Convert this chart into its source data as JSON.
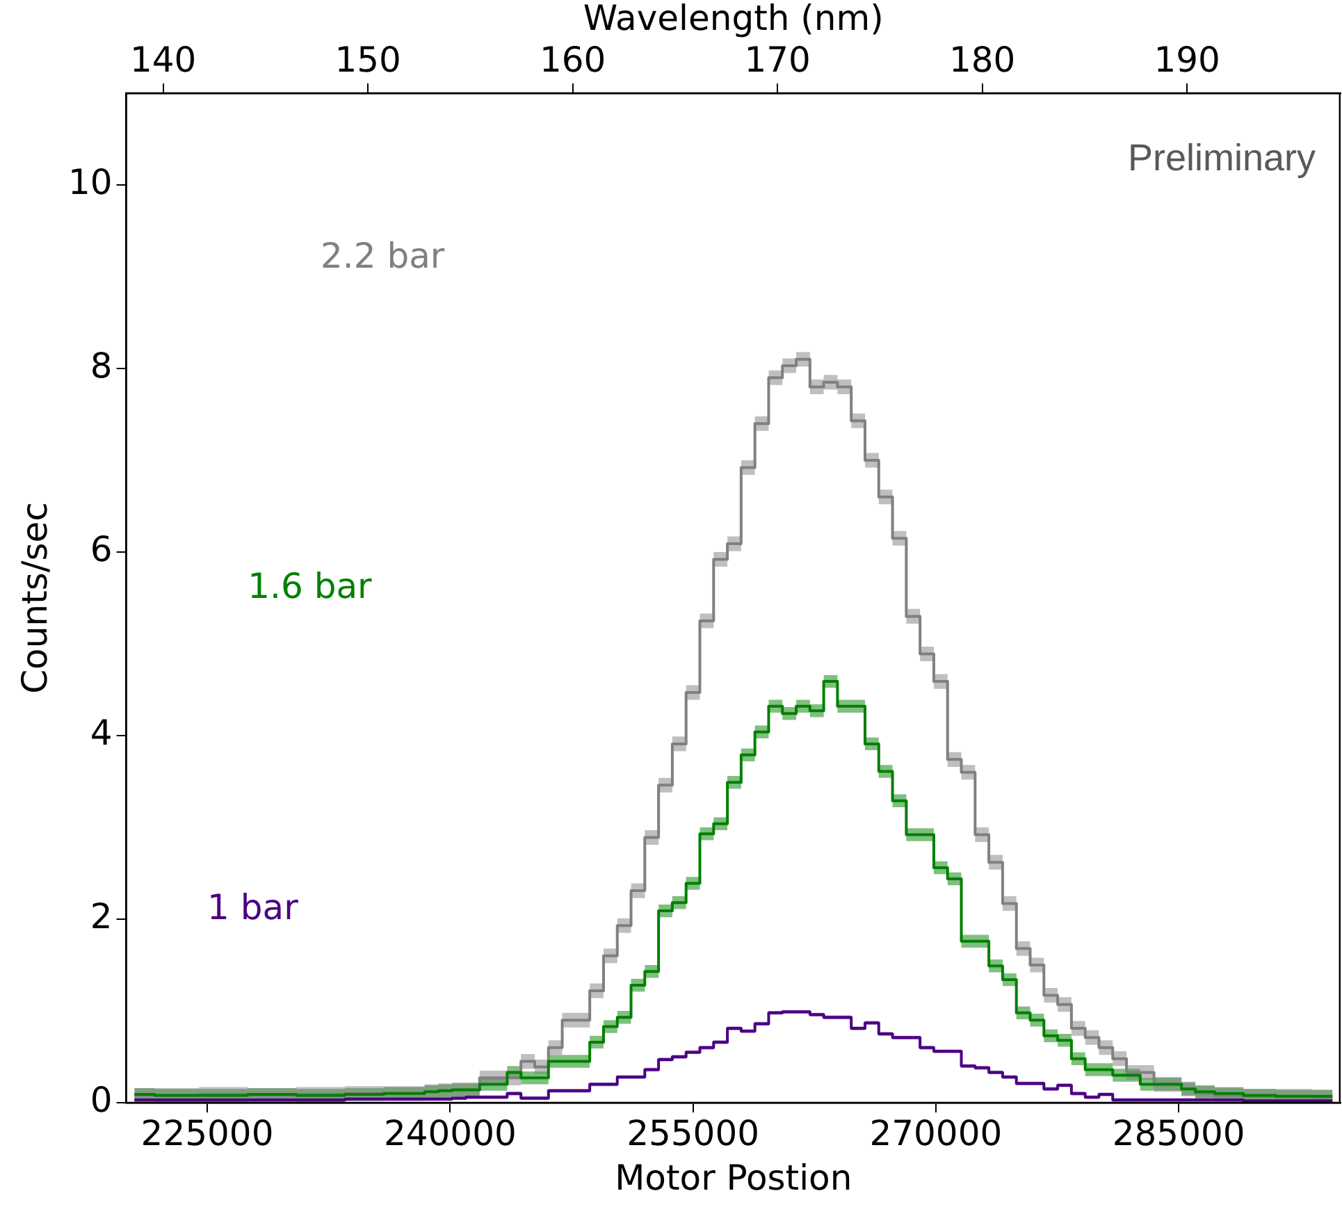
{
  "chart_data": {
    "type": "step",
    "xlabel": "Motor Postion",
    "ylabel": "Counts/sec",
    "x2label": "Wavelength (nm)",
    "xlim": [
      220000,
      295000
    ],
    "xticks": [
      225000,
      240000,
      255000,
      270000,
      285000
    ],
    "x2lim": [
      138.2,
      197.5
    ],
    "x2ticks": [
      140,
      150,
      160,
      170,
      180,
      190
    ],
    "ylim": [
      0,
      11
    ],
    "yticks": [
      0,
      2,
      4,
      6,
      8,
      10
    ],
    "annotations": [
      "Preliminary"
    ],
    "x": [
      220500,
      223000,
      226000,
      229000,
      232000,
      235000,
      236800,
      238000,
      238850,
      239700,
      240550,
      241400,
      242250,
      243100,
      243950,
      244800,
      245650,
      246500,
      247350,
      248200,
      249050,
      249900,
      250750,
      251600,
      252450,
      253300,
      254150,
      255000,
      255850,
      256700,
      257550,
      258400,
      259250,
      260100,
      260950,
      261800,
      262650,
      263500,
      264350,
      265200,
      266050,
      266900,
      267750,
      268600,
      269450,
      270300,
      271150,
      272000,
      272850,
      273700,
      274550,
      275400,
      276250,
      277100,
      277950,
      278800,
      279650,
      280500,
      281350,
      282200,
      283050,
      283900,
      284750,
      285600,
      286450,
      288000,
      290000,
      292000,
      294500
    ],
    "series": [
      {
        "name": "2.2 bar",
        "color": "#808080",
        "values": [
          0.08,
          0.08,
          0.09,
          0.08,
          0.09,
          0.1,
          0.1,
          0.1,
          0.12,
          0.13,
          0.14,
          0.14,
          0.27,
          0.27,
          0.27,
          0.45,
          0.39,
          0.6,
          0.9,
          0.9,
          1.22,
          1.6,
          1.93,
          2.31,
          2.89,
          3.46,
          3.91,
          4.47,
          5.25,
          5.92,
          6.09,
          6.92,
          7.4,
          7.9,
          8.03,
          8.1,
          7.8,
          7.85,
          7.8,
          7.43,
          7.0,
          6.6,
          6.15,
          5.3,
          4.89,
          4.59,
          3.74,
          3.6,
          2.92,
          2.62,
          2.17,
          1.68,
          1.5,
          1.17,
          1.07,
          0.81,
          0.71,
          0.6,
          0.48,
          0.33,
          0.33,
          0.2,
          0.2,
          0.15,
          0.1,
          0.08,
          0.07,
          0.07,
          0.06
        ],
        "lower": [
          0,
          0,
          0.01,
          0,
          0.01,
          0.02,
          0.02,
          0.02,
          0.04,
          0.05,
          0.06,
          0.06,
          0.19,
          0.19,
          0.19,
          0.37,
          0.31,
          0.52,
          0.82,
          0.82,
          1.14,
          1.52,
          1.85,
          2.23,
          2.81,
          3.38,
          3.83,
          4.39,
          5.17,
          5.84,
          6.01,
          6.84,
          7.32,
          7.82,
          7.95,
          8.02,
          7.72,
          7.77,
          7.72,
          7.35,
          6.92,
          6.52,
          6.07,
          5.22,
          4.81,
          4.51,
          3.66,
          3.52,
          2.84,
          2.54,
          2.09,
          1.6,
          1.42,
          1.09,
          0.99,
          0.73,
          0.63,
          0.52,
          0.4,
          0.25,
          0.25,
          0.12,
          0.12,
          0.07,
          0.02,
          0,
          0,
          0,
          0
        ],
        "upper": [
          0.16,
          0.16,
          0.17,
          0.16,
          0.17,
          0.18,
          0.18,
          0.18,
          0.2,
          0.21,
          0.22,
          0.22,
          0.35,
          0.35,
          0.35,
          0.53,
          0.47,
          0.68,
          0.98,
          0.98,
          1.3,
          1.68,
          2.01,
          2.39,
          2.97,
          3.54,
          3.99,
          4.55,
          5.33,
          6.0,
          6.17,
          7.0,
          7.48,
          7.98,
          8.11,
          8.18,
          7.88,
          7.93,
          7.88,
          7.51,
          7.08,
          6.68,
          6.23,
          5.38,
          4.97,
          4.67,
          3.82,
          3.68,
          3.0,
          2.7,
          2.25,
          1.76,
          1.58,
          1.25,
          1.15,
          0.89,
          0.79,
          0.68,
          0.56,
          0.41,
          0.41,
          0.28,
          0.28,
          0.23,
          0.18,
          0.16,
          0.15,
          0.15,
          0.14
        ]
      },
      {
        "name": "1.6 bar",
        "color": "#008000",
        "values": [
          0.09,
          0.08,
          0.08,
          0.09,
          0.08,
          0.09,
          0.1,
          0.1,
          0.12,
          0.13,
          0.14,
          0.14,
          0.2,
          0.2,
          0.33,
          0.27,
          0.27,
          0.45,
          0.45,
          0.45,
          0.66,
          0.83,
          0.93,
          1.28,
          1.43,
          2.09,
          2.18,
          2.39,
          2.93,
          3.04,
          3.49,
          3.79,
          4.04,
          4.32,
          4.24,
          4.32,
          4.27,
          4.59,
          4.32,
          4.32,
          3.91,
          3.61,
          3.29,
          2.92,
          2.92,
          2.56,
          2.44,
          1.76,
          1.76,
          1.49,
          1.34,
          0.98,
          0.9,
          0.73,
          0.68,
          0.48,
          0.36,
          0.36,
          0.3,
          0.3,
          0.2,
          0.2,
          0.2,
          0.15,
          0.12,
          0.1,
          0.08,
          0.07,
          0.07
        ],
        "lower": [
          0.02,
          0.01,
          0.01,
          0.02,
          0.01,
          0.02,
          0.03,
          0.03,
          0.05,
          0.06,
          0.07,
          0.07,
          0.13,
          0.13,
          0.26,
          0.2,
          0.2,
          0.38,
          0.38,
          0.38,
          0.59,
          0.76,
          0.86,
          1.21,
          1.36,
          2.02,
          2.11,
          2.32,
          2.86,
          2.97,
          3.42,
          3.72,
          3.97,
          4.25,
          4.17,
          4.25,
          4.2,
          4.52,
          4.25,
          4.25,
          3.84,
          3.54,
          3.22,
          2.85,
          2.85,
          2.49,
          2.37,
          1.69,
          1.69,
          1.42,
          1.27,
          0.91,
          0.83,
          0.66,
          0.61,
          0.41,
          0.29,
          0.29,
          0.23,
          0.23,
          0.13,
          0.13,
          0.13,
          0.08,
          0.05,
          0.03,
          0.01,
          0,
          0
        ],
        "upper": [
          0.16,
          0.15,
          0.15,
          0.16,
          0.15,
          0.16,
          0.17,
          0.17,
          0.19,
          0.2,
          0.21,
          0.21,
          0.27,
          0.27,
          0.4,
          0.34,
          0.34,
          0.52,
          0.52,
          0.52,
          0.73,
          0.9,
          1.0,
          1.35,
          1.5,
          2.16,
          2.25,
          2.46,
          3.0,
          3.11,
          3.56,
          3.86,
          4.11,
          4.39,
          4.31,
          4.39,
          4.34,
          4.66,
          4.39,
          4.39,
          3.98,
          3.68,
          3.36,
          2.99,
          2.99,
          2.63,
          2.51,
          1.83,
          1.83,
          1.56,
          1.41,
          1.05,
          0.97,
          0.8,
          0.75,
          0.55,
          0.43,
          0.43,
          0.37,
          0.37,
          0.27,
          0.27,
          0.27,
          0.22,
          0.19,
          0.17,
          0.15,
          0.14,
          0.14
        ]
      },
      {
        "name": "1 bar",
        "color": "#4b0082",
        "values": [
          0.03,
          0.03,
          0.03,
          0.03,
          0.03,
          0.04,
          0.04,
          0.04,
          0.04,
          0.04,
          0.05,
          0.06,
          0.06,
          0.06,
          0.1,
          0.05,
          0.05,
          0.13,
          0.13,
          0.13,
          0.2,
          0.2,
          0.28,
          0.28,
          0.36,
          0.47,
          0.5,
          0.55,
          0.6,
          0.66,
          0.81,
          0.78,
          0.86,
          0.98,
          0.99,
          0.99,
          0.96,
          0.93,
          0.93,
          0.81,
          0.87,
          0.75,
          0.71,
          0.71,
          0.6,
          0.56,
          0.56,
          0.4,
          0.38,
          0.33,
          0.28,
          0.21,
          0.21,
          0.15,
          0.19,
          0.1,
          0.06,
          0.09,
          0.03,
          0.03,
          0.03,
          0.03,
          0.03,
          0.03,
          0.03,
          0.03,
          0.02,
          0.02,
          0.02
        ],
        "lower": [
          0.01,
          0.01,
          0.01,
          0.01,
          0.01,
          0.02,
          0.02,
          0.02,
          0.02,
          0.02,
          0.03,
          0.04,
          0.04,
          0.04,
          0.08,
          0.03,
          0.03,
          0.11,
          0.11,
          0.11,
          0.18,
          0.18,
          0.26,
          0.26,
          0.34,
          0.45,
          0.48,
          0.53,
          0.58,
          0.64,
          0.79,
          0.76,
          0.84,
          0.96,
          0.97,
          0.97,
          0.94,
          0.91,
          0.91,
          0.79,
          0.85,
          0.73,
          0.69,
          0.69,
          0.58,
          0.54,
          0.54,
          0.38,
          0.36,
          0.31,
          0.26,
          0.19,
          0.19,
          0.13,
          0.17,
          0.08,
          0.04,
          0.07,
          0.01,
          0.01,
          0.01,
          0.01,
          0.01,
          0.01,
          0.01,
          0.01,
          0,
          0,
          0
        ],
        "upper": [
          0.05,
          0.05,
          0.05,
          0.05,
          0.05,
          0.06,
          0.06,
          0.06,
          0.06,
          0.06,
          0.07,
          0.08,
          0.08,
          0.08,
          0.12,
          0.07,
          0.07,
          0.15,
          0.15,
          0.15,
          0.22,
          0.22,
          0.3,
          0.3,
          0.38,
          0.49,
          0.52,
          0.57,
          0.62,
          0.68,
          0.83,
          0.8,
          0.88,
          1.0,
          1.01,
          1.01,
          0.98,
          0.95,
          0.95,
          0.83,
          0.89,
          0.77,
          0.73,
          0.73,
          0.62,
          0.58,
          0.58,
          0.42,
          0.4,
          0.35,
          0.3,
          0.23,
          0.23,
          0.17,
          0.21,
          0.12,
          0.08,
          0.11,
          0.05,
          0.05,
          0.05,
          0.05,
          0.05,
          0.05,
          0.05,
          0.05,
          0.04,
          0.04,
          0.04
        ]
      }
    ]
  }
}
